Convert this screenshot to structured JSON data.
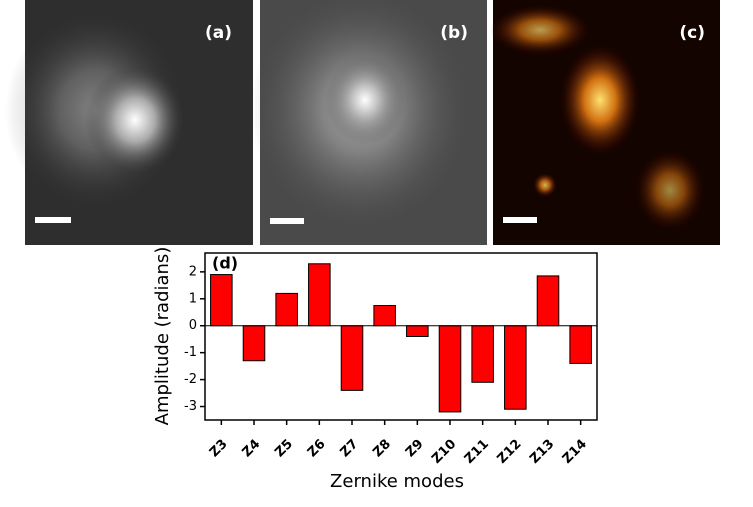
{
  "panels": [
    "(a)",
    "(b)",
    "(c)"
  ],
  "chart_data": {
    "type": "bar",
    "panel_label": "(d)",
    "x_label": "Zernike modes",
    "y_label": "Amplitude (radians)",
    "categories": [
      "Z3",
      "Z4",
      "Z5",
      "Z6",
      "Z7",
      "Z8",
      "Z9",
      "Z10",
      "Z11",
      "Z12",
      "Z13",
      "Z14"
    ],
    "values": [
      1.9,
      -1.3,
      1.2,
      2.3,
      -2.4,
      0.75,
      -0.4,
      -3.2,
      -2.1,
      -3.1,
      1.85,
      -1.4
    ],
    "color": "#ff0000",
    "ylim": [
      -3.5,
      2.7
    ],
    "yticks": [
      -3,
      -2,
      -1,
      0,
      1,
      2
    ]
  }
}
